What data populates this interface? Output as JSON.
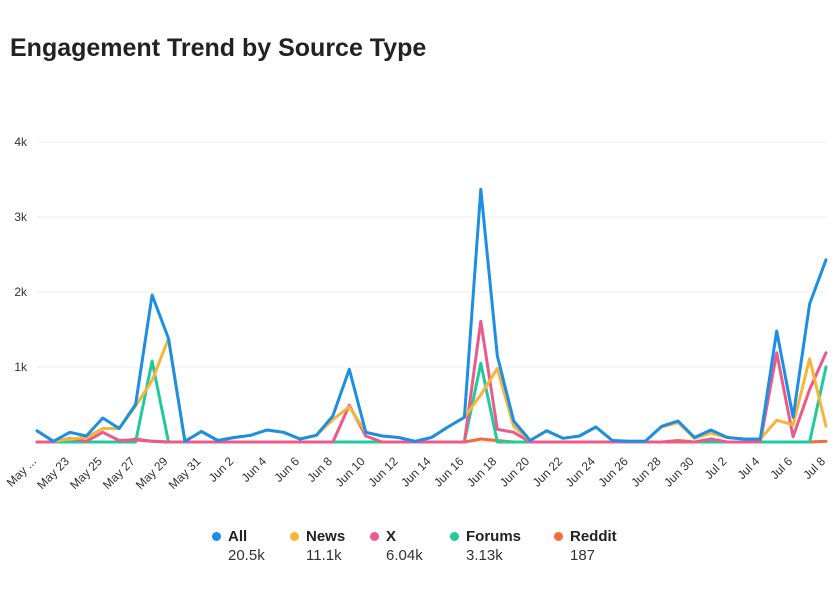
{
  "chart_data": {
    "type": "line",
    "title": "Engagement Trend by Source Type",
    "y_ticks": [
      "4k",
      "3k",
      "2k",
      "1k"
    ],
    "y_tick_values": [
      4000,
      3000,
      2000,
      1000
    ],
    "ylim": [
      0,
      4000
    ],
    "grid": true,
    "x_tick_labels": [
      "May ...",
      "May 23",
      "May 25",
      "May 27",
      "May 29",
      "May 31",
      "Jun 2",
      "Jun 4",
      "Jun 6",
      "Jun 8",
      "Jun 10",
      "Jun 12",
      "Jun 14",
      "Jun 16",
      "Jun 18",
      "Jun 20",
      "Jun 22",
      "Jun 24",
      "Jun 26",
      "Jun 28",
      "Jun 30",
      "Jul 2",
      "Jul 4",
      "Jul 6",
      "Jul 8"
    ],
    "x_start": "May 21",
    "legend_position": "bottom",
    "series": [
      {
        "name": "All",
        "color": "#1a8fe3",
        "total": "20.5k",
        "values": [
          150,
          10,
          130,
          80,
          320,
          180,
          500,
          1960,
          1380,
          10,
          140,
          20,
          60,
          90,
          160,
          130,
          40,
          90,
          350,
          970,
          130,
          80,
          60,
          10,
          60,
          200,
          330,
          3370,
          1150,
          280,
          20,
          150,
          50,
          80,
          200,
          20,
          10,
          10,
          210,
          280,
          60,
          160,
          60,
          40,
          40,
          1480,
          330,
          1840,
          2430
        ]
      },
      {
        "name": "News",
        "color": "#f7b538",
        "total": "11.1k",
        "values": [
          150,
          10,
          40,
          60,
          180,
          180,
          480,
          820,
          1380,
          10,
          140,
          20,
          60,
          90,
          160,
          130,
          40,
          90,
          300,
          470,
          130,
          80,
          60,
          10,
          60,
          200,
          330,
          630,
          980,
          210,
          20,
          150,
          50,
          80,
          200,
          20,
          10,
          10,
          200,
          260,
          50,
          120,
          60,
          40,
          40,
          290,
          230,
          1110,
          210
        ]
      },
      {
        "name": "X",
        "color": "#ec5a89",
        "total": "6.04k",
        "values": [
          0,
          0,
          50,
          10,
          130,
          20,
          30,
          10,
          0,
          0,
          0,
          0,
          0,
          0,
          0,
          0,
          0,
          0,
          0,
          490,
          80,
          0,
          0,
          0,
          0,
          0,
          0,
          1610,
          170,
          130,
          0,
          0,
          0,
          0,
          0,
          0,
          0,
          0,
          0,
          0,
          0,
          40,
          0,
          0,
          0,
          1190,
          70,
          700,
          1190
        ]
      },
      {
        "name": "Forums",
        "color": "#1fcb9c",
        "total": "3.13k",
        "values": [
          0,
          0,
          0,
          0,
          0,
          0,
          0,
          1080,
          0,
          0,
          0,
          0,
          0,
          0,
          0,
          0,
          0,
          0,
          0,
          0,
          0,
          0,
          0,
          0,
          0,
          0,
          0,
          1050,
          0,
          0,
          0,
          0,
          0,
          0,
          0,
          0,
          0,
          0,
          0,
          0,
          0,
          0,
          0,
          0,
          0,
          0,
          0,
          0,
          1000
        ]
      },
      {
        "name": "Reddit",
        "color": "#f26b3a",
        "total": "187",
        "values": [
          0,
          0,
          0,
          0,
          0,
          0,
          40,
          10,
          0,
          0,
          0,
          0,
          0,
          0,
          0,
          0,
          0,
          0,
          0,
          0,
          0,
          0,
          0,
          0,
          0,
          0,
          0,
          40,
          20,
          0,
          0,
          0,
          0,
          0,
          0,
          0,
          0,
          0,
          0,
          20,
          0,
          0,
          0,
          0,
          0,
          0,
          0,
          0,
          10
        ]
      }
    ]
  }
}
